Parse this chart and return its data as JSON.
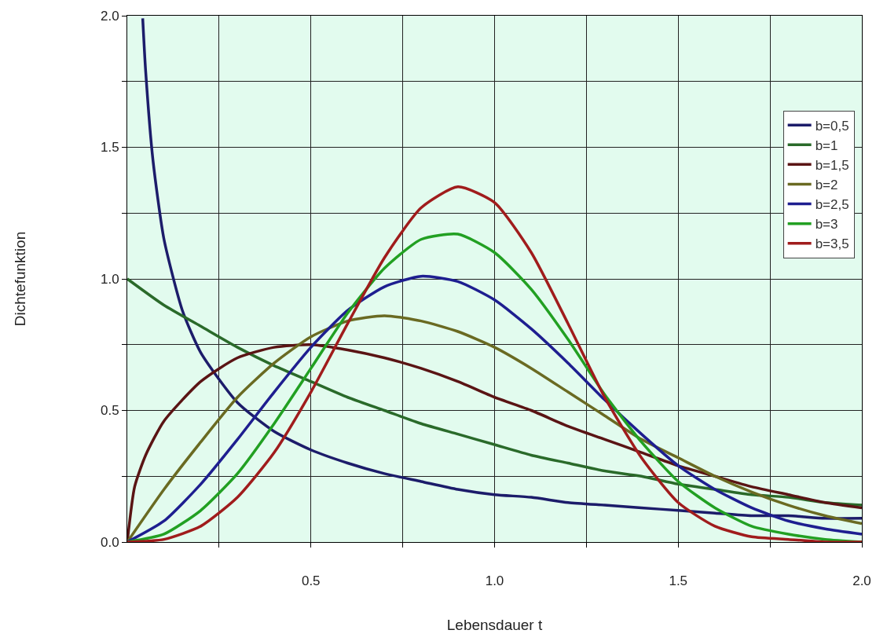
{
  "chart_data": {
    "type": "line",
    "xlabel": "Lebensdauer t",
    "ylabel": "Dichtefunktion",
    "x": [
      0,
      0.1,
      0.2,
      0.3,
      0.4,
      0.5,
      0.6,
      0.7,
      0.8,
      0.9,
      1.0,
      1.1,
      1.2,
      1.3,
      1.4,
      1.5,
      1.6,
      1.7,
      1.8,
      1.9,
      2.0
    ],
    "xlim": [
      0,
      2
    ],
    "ylim": [
      0,
      2
    ],
    "xticks": [
      {
        "value": 0.25,
        "label": null
      },
      {
        "value": 0.5,
        "label": "0.5"
      },
      {
        "value": 0.75,
        "label": null
      },
      {
        "value": 1,
        "label": "1.0"
      },
      {
        "value": 1.25,
        "label": null
      },
      {
        "value": 1.5,
        "label": "1.5"
      },
      {
        "value": 1.75,
        "label": null
      },
      {
        "value": 2,
        "label": "2.0"
      }
    ],
    "yticks": [
      {
        "value": 0,
        "label": "0.0"
      },
      {
        "value": 0.25,
        "label": null
      },
      {
        "value": 0.5,
        "label": "0.5"
      },
      {
        "value": 0.75,
        "label": null
      },
      {
        "value": 1,
        "label": "1.0"
      },
      {
        "value": 1.25,
        "label": null
      },
      {
        "value": 1.5,
        "label": "1.5"
      },
      {
        "value": 1.75,
        "label": null
      },
      {
        "value": 2,
        "label": "2.0"
      }
    ],
    "grid": true,
    "legend": "top right",
    "marker": "none",
    "line_style": "solid",
    "series": [
      {
        "name": "b=0,5",
        "color": "#1c1c6a",
        "x": [
          0.042,
          0.05,
          0.07,
          0.1,
          0.15,
          0.2,
          0.3,
          0.4,
          0.5,
          0.6,
          0.7,
          0.8,
          0.9,
          1.0,
          1.1,
          1.2,
          1.3,
          1.4,
          1.5,
          1.6,
          1.7,
          1.8,
          1.9,
          2.0
        ],
        "values": [
          1.99,
          1.79,
          1.45,
          1.15,
          0.88,
          0.72,
          0.53,
          0.42,
          0.35,
          0.3,
          0.26,
          0.23,
          0.2,
          0.18,
          0.17,
          0.15,
          0.14,
          0.13,
          0.12,
          0.11,
          0.1,
          0.1,
          0.09,
          0.09
        ]
      },
      {
        "name": "b=1",
        "color": "#2a6a2a",
        "values": [
          1,
          0.9,
          0.82,
          0.74,
          0.67,
          0.61,
          0.55,
          0.5,
          0.45,
          0.41,
          0.37,
          0.33,
          0.3,
          0.27,
          0.25,
          0.22,
          0.2,
          0.18,
          0.17,
          0.15,
          0.14
        ]
      },
      {
        "name": "b=1,5",
        "color": "#5a1414",
        "x": [
          0,
          0.02,
          0.05,
          0.1,
          0.2,
          0.3,
          0.4,
          0.5,
          0.6,
          0.7,
          0.8,
          0.9,
          1.0,
          1.1,
          1.2,
          1.3,
          1.4,
          1.5,
          1.6,
          1.7,
          1.8,
          1.9,
          2.0
        ],
        "values": [
          0,
          0.21,
          0.33,
          0.46,
          0.61,
          0.7,
          0.74,
          0.75,
          0.73,
          0.7,
          0.66,
          0.61,
          0.55,
          0.5,
          0.44,
          0.39,
          0.34,
          0.29,
          0.25,
          0.21,
          0.18,
          0.15,
          0.13
        ]
      },
      {
        "name": "b=2",
        "color": "#6a6a22",
        "values": [
          0,
          0.2,
          0.38,
          0.55,
          0.68,
          0.78,
          0.84,
          0.86,
          0.84,
          0.8,
          0.74,
          0.66,
          0.57,
          0.48,
          0.39,
          0.32,
          0.25,
          0.19,
          0.14,
          0.1,
          0.07
        ]
      },
      {
        "name": "b=2,5",
        "color": "#1e1e90",
        "values": [
          0,
          0.08,
          0.22,
          0.39,
          0.57,
          0.74,
          0.88,
          0.97,
          1.01,
          0.99,
          0.92,
          0.81,
          0.68,
          0.54,
          0.41,
          0.29,
          0.2,
          0.13,
          0.08,
          0.05,
          0.03
        ]
      },
      {
        "name": "b=3",
        "color": "#22a022",
        "values": [
          0,
          0.03,
          0.12,
          0.26,
          0.45,
          0.66,
          0.87,
          1.04,
          1.15,
          1.17,
          1.1,
          0.96,
          0.77,
          0.56,
          0.38,
          0.23,
          0.13,
          0.06,
          0.03,
          0.01,
          0
        ]
      },
      {
        "name": "b=3,5",
        "color": "#a01c1c",
        "values": [
          0,
          0.01,
          0.06,
          0.17,
          0.34,
          0.57,
          0.83,
          1.08,
          1.27,
          1.35,
          1.29,
          1.1,
          0.83,
          0.55,
          0.32,
          0.15,
          0.06,
          0.02,
          0.01,
          0,
          0
        ]
      }
    ]
  }
}
